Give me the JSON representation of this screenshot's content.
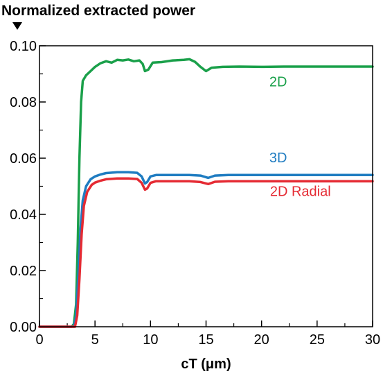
{
  "chart_data": {
    "type": "line",
    "title": "",
    "ylabel": "Normalized extracted power",
    "xlabel": "cT (μm)",
    "xlim": [
      0,
      30
    ],
    "ylim": [
      0,
      0.1
    ],
    "x_ticks": [
      0,
      5,
      10,
      15,
      20,
      25,
      30
    ],
    "x_tick_labels": [
      "0",
      "5",
      "10",
      "15",
      "20",
      "25",
      "30"
    ],
    "y_ticks": [
      0,
      0.02,
      0.04,
      0.06,
      0.08,
      0.1
    ],
    "y_tick_labels": [
      "0.00",
      "0.02",
      "0.04",
      "0.06",
      "0.08",
      "0.10"
    ],
    "grid": false,
    "series": [
      {
        "name": "2D",
        "color": "#1aa04a",
        "points": [
          [
            0,
            0
          ],
          [
            2.9,
            0
          ],
          [
            3.1,
            0.001
          ],
          [
            3.3,
            0.008
          ],
          [
            3.45,
            0.03
          ],
          [
            3.6,
            0.06
          ],
          [
            3.75,
            0.08
          ],
          [
            3.9,
            0.0875
          ],
          [
            4.2,
            0.0895
          ],
          [
            4.6,
            0.091
          ],
          [
            5.0,
            0.0925
          ],
          [
            5.5,
            0.0938
          ],
          [
            6.0,
            0.0945
          ],
          [
            6.5,
            0.094
          ],
          [
            7.0,
            0.095
          ],
          [
            7.5,
            0.0948
          ],
          [
            8.0,
            0.0951
          ],
          [
            8.5,
            0.0945
          ],
          [
            9.0,
            0.0948
          ],
          [
            9.3,
            0.0935
          ],
          [
            9.5,
            0.091
          ],
          [
            9.8,
            0.0915
          ],
          [
            10.2,
            0.094
          ],
          [
            11,
            0.0942
          ],
          [
            12,
            0.0948
          ],
          [
            13,
            0.095
          ],
          [
            13.5,
            0.0952
          ],
          [
            14,
            0.0943
          ],
          [
            14.5,
            0.0925
          ],
          [
            15.0,
            0.091
          ],
          [
            15.5,
            0.0922
          ],
          [
            16.5,
            0.0925
          ],
          [
            18,
            0.0926
          ],
          [
            20,
            0.0925
          ],
          [
            22,
            0.0926
          ],
          [
            25,
            0.0926
          ],
          [
            28,
            0.0926
          ],
          [
            30,
            0.0926
          ]
        ]
      },
      {
        "name": "3D",
        "color": "#1f7cc1",
        "points": [
          [
            0,
            0
          ],
          [
            3.1,
            0
          ],
          [
            3.3,
            0.004
          ],
          [
            3.5,
            0.018
          ],
          [
            3.7,
            0.035
          ],
          [
            3.9,
            0.045
          ],
          [
            4.2,
            0.05
          ],
          [
            4.6,
            0.0525
          ],
          [
            5.0,
            0.0535
          ],
          [
            5.5,
            0.0542
          ],
          [
            6.0,
            0.0547
          ],
          [
            7,
            0.055
          ],
          [
            8,
            0.055
          ],
          [
            8.8,
            0.0548
          ],
          [
            9.2,
            0.0535
          ],
          [
            9.5,
            0.051
          ],
          [
            9.7,
            0.0515
          ],
          [
            10,
            0.0535
          ],
          [
            10.5,
            0.054
          ],
          [
            12,
            0.054
          ],
          [
            13.5,
            0.054
          ],
          [
            14.5,
            0.0538
          ],
          [
            15.2,
            0.053
          ],
          [
            15.8,
            0.0538
          ],
          [
            17,
            0.054
          ],
          [
            20,
            0.054
          ],
          [
            25,
            0.054
          ],
          [
            30,
            0.054
          ]
        ]
      },
      {
        "name": "2D Radial",
        "color": "#e52a33",
        "points": [
          [
            0,
            0
          ],
          [
            3.2,
            0
          ],
          [
            3.4,
            0.004
          ],
          [
            3.6,
            0.017
          ],
          [
            3.8,
            0.033
          ],
          [
            4.0,
            0.043
          ],
          [
            4.3,
            0.048
          ],
          [
            4.7,
            0.0505
          ],
          [
            5.0,
            0.0513
          ],
          [
            5.5,
            0.052
          ],
          [
            6.0,
            0.0525
          ],
          [
            7,
            0.0528
          ],
          [
            8,
            0.0528
          ],
          [
            8.8,
            0.0526
          ],
          [
            9.2,
            0.0512
          ],
          [
            9.5,
            0.0488
          ],
          [
            9.7,
            0.0492
          ],
          [
            10,
            0.0512
          ],
          [
            10.5,
            0.0518
          ],
          [
            12,
            0.0518
          ],
          [
            13.5,
            0.0518
          ],
          [
            14.5,
            0.0515
          ],
          [
            15.2,
            0.0508
          ],
          [
            15.8,
            0.0516
          ],
          [
            17,
            0.0518
          ],
          [
            20,
            0.0518
          ],
          [
            25,
            0.0518
          ],
          [
            30,
            0.0518
          ]
        ]
      }
    ]
  }
}
